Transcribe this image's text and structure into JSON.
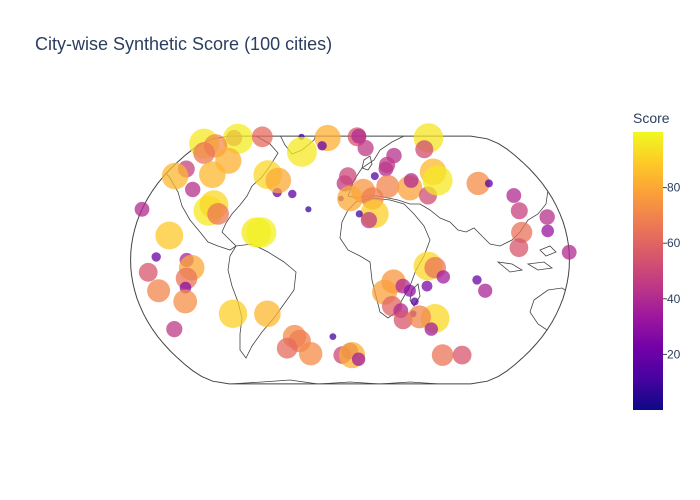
{
  "title": "City-wise Synthetic Score (100 cities)",
  "colorbar": {
    "title": "Score",
    "ticks": [
      20,
      40,
      60,
      80
    ],
    "range": [
      0,
      100
    ],
    "colorscale": [
      "#0d0887",
      "#46039f",
      "#7201a8",
      "#9c179e",
      "#bd3786",
      "#d8576b",
      "#ed7953",
      "#fb9f3a",
      "#fdca26",
      "#f0f921"
    ]
  },
  "chart_data": {
    "type": "scatter",
    "projection": "natural earth",
    "title": "City-wise Synthetic Score (100 cities)",
    "color_label": "Score",
    "points": [
      {
        "lon": -177,
        "lat": 80,
        "score": 96
      },
      {
        "lon": -155,
        "lat": 86,
        "score": 45
      },
      {
        "lon": -147,
        "lat": 85,
        "score": 97
      },
      {
        "lon": -123,
        "lat": 88,
        "score": 62
      },
      {
        "lon": -68,
        "lat": 88,
        "score": 8
      },
      {
        "lon": -30,
        "lat": 86,
        "score": 82
      },
      {
        "lon": 10,
        "lat": 88,
        "score": 55
      },
      {
        "lon": 13,
        "lat": 90,
        "score": 40
      },
      {
        "lon": 105,
        "lat": 86,
        "score": 95
      },
      {
        "lon": -159,
        "lat": 78,
        "score": 72
      },
      {
        "lon": -162,
        "lat": 72,
        "score": 66
      },
      {
        "lon": -128,
        "lat": 66,
        "score": 82
      },
      {
        "lon": -33,
        "lat": 78,
        "score": 20
      },
      {
        "lon": -54,
        "lat": 73,
        "score": 96
      },
      {
        "lon": 18,
        "lat": 76,
        "score": 45
      },
      {
        "lon": 48,
        "lat": 70,
        "score": 42
      },
      {
        "lon": 85,
        "lat": 75,
        "score": 52
      },
      {
        "lon": -164,
        "lat": 60,
        "score": 48
      },
      {
        "lon": -169,
        "lat": 55,
        "score": 84
      },
      {
        "lon": -134,
        "lat": 56,
        "score": 84
      },
      {
        "lon": -144,
        "lat": 46,
        "score": 42
      },
      {
        "lon": -66,
        "lat": 44,
        "score": 20
      },
      {
        "lon": -80,
        "lat": 56,
        "score": 92
      },
      {
        "lon": -68,
        "lat": 52,
        "score": 80
      },
      {
        "lon": -52,
        "lat": 43,
        "score": 16
      },
      {
        "lon": -8,
        "lat": 40,
        "score": 6
      },
      {
        "lon": -5,
        "lat": 50,
        "score": 45
      },
      {
        "lon": -2,
        "lat": 55,
        "score": 50
      },
      {
        "lon": 24,
        "lat": 55,
        "score": 15
      },
      {
        "lon": 36,
        "lat": 60,
        "score": 40
      },
      {
        "lon": 38,
        "lat": 63,
        "score": 45
      },
      {
        "lon": 12,
        "lat": 45,
        "score": 75
      },
      {
        "lon": 35,
        "lat": 48,
        "score": 70
      },
      {
        "lon": 55,
        "lat": 47,
        "score": 78
      },
      {
        "lon": 58,
        "lat": 52,
        "score": 40
      },
      {
        "lon": 70,
        "lat": 42,
        "score": 52
      },
      {
        "lon": 82,
        "lat": 58,
        "score": 84
      },
      {
        "lon": 83,
        "lat": 52,
        "score": 96
      },
      {
        "lon": 120,
        "lat": 50,
        "score": 72
      },
      {
        "lon": 130,
        "lat": 50,
        "score": 15
      },
      {
        "lon": 147,
        "lat": 42,
        "score": 40
      },
      {
        "lon": 146,
        "lat": 32,
        "score": 48
      },
      {
        "lon": 168,
        "lat": 28,
        "score": 42
      },
      {
        "lon": -180,
        "lat": 33,
        "score": 40
      },
      {
        "lon": -122,
        "lat": 32,
        "score": 96
      },
      {
        "lon": -119,
        "lat": 36,
        "score": 92
      },
      {
        "lon": -113,
        "lat": 30,
        "score": 66
      },
      {
        "lon": -150,
        "lat": 16,
        "score": 88
      },
      {
        "lon": -78,
        "lat": 18,
        "score": 96
      },
      {
        "lon": -74,
        "lat": 18,
        "score": 98
      },
      {
        "lon": -36,
        "lat": 33,
        "score": 8
      },
      {
        "lon": 0,
        "lat": 40,
        "score": 80
      },
      {
        "lon": 20,
        "lat": 40,
        "score": 68
      },
      {
        "lon": 21,
        "lat": 30,
        "score": 90
      },
      {
        "lon": 8,
        "lat": 30,
        "score": 12
      },
      {
        "lon": 16,
        "lat": 26,
        "score": 45
      },
      {
        "lon": 143,
        "lat": 18,
        "score": 64
      },
      {
        "lon": 139,
        "lat": 8,
        "score": 55
      },
      {
        "lon": 165,
        "lat": 19,
        "score": 32
      },
      {
        "lon": 180,
        "lat": 5,
        "score": 40
      },
      {
        "lon": -159,
        "lat": 2,
        "score": 20
      },
      {
        "lon": -134,
        "lat": 0,
        "score": 38
      },
      {
        "lon": -166,
        "lat": -8,
        "score": 55
      },
      {
        "lon": -130,
        "lat": -5,
        "score": 80
      },
      {
        "lon": -135,
        "lat": -12,
        "score": 65
      },
      {
        "lon": -137,
        "lat": -18,
        "score": 28
      },
      {
        "lon": -160,
        "lat": -20,
        "score": 70
      },
      {
        "lon": -140,
        "lat": -27,
        "score": 73
      },
      {
        "lon": -102,
        "lat": -35,
        "score": 90
      },
      {
        "lon": -72,
        "lat": -35,
        "score": 84
      },
      {
        "lon": -160,
        "lat": -45,
        "score": 45
      },
      {
        "lon": -52,
        "lat": -50,
        "score": 72
      },
      {
        "lon": -48,
        "lat": -53,
        "score": 68
      },
      {
        "lon": 64,
        "lat": -4,
        "score": 92
      },
      {
        "lon": 70,
        "lat": -5,
        "score": 65
      },
      {
        "lon": 64,
        "lat": -17,
        "score": 25
      },
      {
        "lon": 77,
        "lat": -11,
        "score": 35
      },
      {
        "lon": 105,
        "lat": -13,
        "score": 20
      },
      {
        "lon": 113,
        "lat": -20,
        "score": 38
      },
      {
        "lon": 36,
        "lat": -14,
        "score": 75
      },
      {
        "lon": 29,
        "lat": -21,
        "score": 78
      },
      {
        "lon": 44,
        "lat": -17,
        "score": 40
      },
      {
        "lon": 50,
        "lat": -20,
        "score": 30
      },
      {
        "lon": 55,
        "lat": -27,
        "score": 15
      },
      {
        "lon": 55,
        "lat": -35,
        "score": 10
      },
      {
        "lon": 36,
        "lat": -30,
        "score": 60
      },
      {
        "lon": 44,
        "lat": -33,
        "score": 40
      },
      {
        "lon": 47,
        "lat": -39,
        "score": 55
      },
      {
        "lon": 75,
        "lat": -38,
        "score": 92
      },
      {
        "lon": 61,
        "lat": -37,
        "score": 70
      },
      {
        "lon": 74,
        "lat": -45,
        "score": 35
      },
      {
        "lon": -62,
        "lat": -58,
        "score": 62
      },
      {
        "lon": -40,
        "lat": -62,
        "score": 72
      },
      {
        "lon": -16,
        "lat": -50,
        "score": 10
      },
      {
        "lon": -8,
        "lat": -63,
        "score": 50
      },
      {
        "lon": 0,
        "lat": -60,
        "score": 45
      },
      {
        "lon": 2,
        "lat": -63,
        "score": 82
      },
      {
        "lon": 9,
        "lat": -66,
        "score": 35
      },
      {
        "lon": 95,
        "lat": -63,
        "score": 65
      },
      {
        "lon": 115,
        "lat": -63,
        "score": 55
      }
    ]
  }
}
